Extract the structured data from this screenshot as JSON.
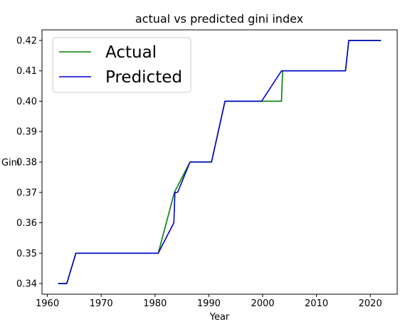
{
  "chart_data": {
    "type": "line",
    "title": "actual vs predicted gini index",
    "xlabel": "Year",
    "ylabel": "Gini",
    "xlim": [
      1959.0,
      2025.0
    ],
    "ylim": [
      0.3365,
      0.4235
    ],
    "xticks": [
      1960,
      1970,
      1980,
      1990,
      2000,
      2010,
      2020
    ],
    "xtick_labels": [
      "1960",
      "1970",
      "1980",
      "1990",
      "2000",
      "2010",
      "2020"
    ],
    "yticks": [
      0.34,
      0.35,
      0.36,
      0.37,
      0.38,
      0.39,
      0.4,
      0.41,
      0.42
    ],
    "ytick_labels": [
      "0.34",
      "0.35",
      "0.36",
      "0.37",
      "0.38",
      "0.39",
      "0.40",
      "0.41",
      "0.42"
    ],
    "grid": false,
    "legend_position": "top-left",
    "series": [
      {
        "name": "Actual",
        "color": "#008000",
        "x": [
          1962,
          1963.6,
          1965.3,
          1980.6,
          1983.6,
          1986.5,
          1990.5,
          1993,
          2003.5,
          2003.7,
          2015.4,
          2016,
          2022
        ],
        "y": [
          0.34,
          0.34,
          0.35,
          0.35,
          0.37,
          0.38,
          0.38,
          0.4,
          0.4,
          0.41,
          0.41,
          0.42,
          0.42
        ]
      },
      {
        "name": "Predicted",
        "color": "#0000cd",
        "x": [
          1962,
          1963.6,
          1965.3,
          1980.6,
          1983.5,
          1983.7,
          1984.2,
          1986.5,
          1990.5,
          1993,
          1999.8,
          2003.5,
          2015.4,
          2016,
          2022
        ],
        "y": [
          0.34,
          0.34,
          0.35,
          0.35,
          0.36,
          0.37,
          0.37,
          0.38,
          0.38,
          0.4,
          0.4,
          0.41,
          0.41,
          0.42,
          0.42
        ]
      }
    ]
  }
}
